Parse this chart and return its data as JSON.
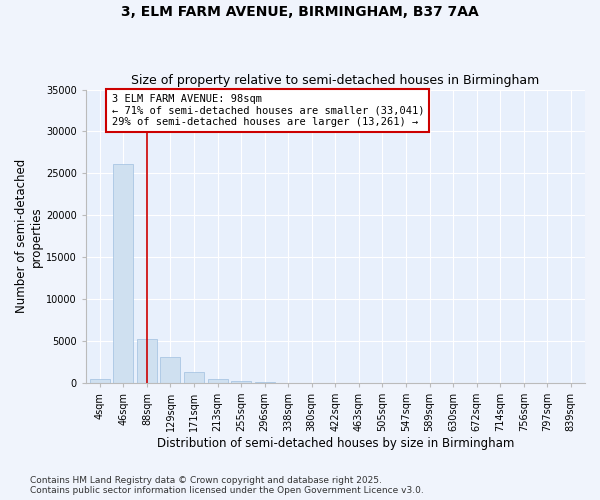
{
  "title": "3, ELM FARM AVENUE, BIRMINGHAM, B37 7AA",
  "subtitle": "Size of property relative to semi-detached houses in Birmingham",
  "xlabel": "Distribution of semi-detached houses by size in Birmingham",
  "ylabel": "Number of semi-detached\nproperties",
  "categories": [
    "4sqm",
    "46sqm",
    "88sqm",
    "129sqm",
    "171sqm",
    "213sqm",
    "255sqm",
    "296sqm",
    "338sqm",
    "380sqm",
    "422sqm",
    "463sqm",
    "505sqm",
    "547sqm",
    "589sqm",
    "630sqm",
    "672sqm",
    "714sqm",
    "756sqm",
    "797sqm",
    "839sqm"
  ],
  "values": [
    490,
    26100,
    5200,
    3100,
    1300,
    500,
    200,
    50,
    15,
    5,
    3,
    2,
    1,
    1,
    0,
    0,
    0,
    0,
    0,
    0,
    0
  ],
  "bar_color": "#cfe0f0",
  "bar_edge_color": "#a0c0e0",
  "red_line_x": 2,
  "annotation_line1": "3 ELM FARM AVENUE: 98sqm",
  "annotation_line2": "← 71% of semi-detached houses are smaller (33,041)",
  "annotation_line3": "29% of semi-detached houses are larger (13,261) →",
  "ylim_max": 35000,
  "yticks": [
    0,
    5000,
    10000,
    15000,
    20000,
    25000,
    30000,
    35000
  ],
  "background_color": "#f0f4fc",
  "plot_bg_color": "#e8f0fc",
  "footer": "Contains HM Land Registry data © Crown copyright and database right 2025.\nContains public sector information licensed under the Open Government Licence v3.0.",
  "title_fontsize": 10,
  "subtitle_fontsize": 9,
  "axis_label_fontsize": 8.5,
  "tick_fontsize": 7,
  "footer_fontsize": 6.5
}
